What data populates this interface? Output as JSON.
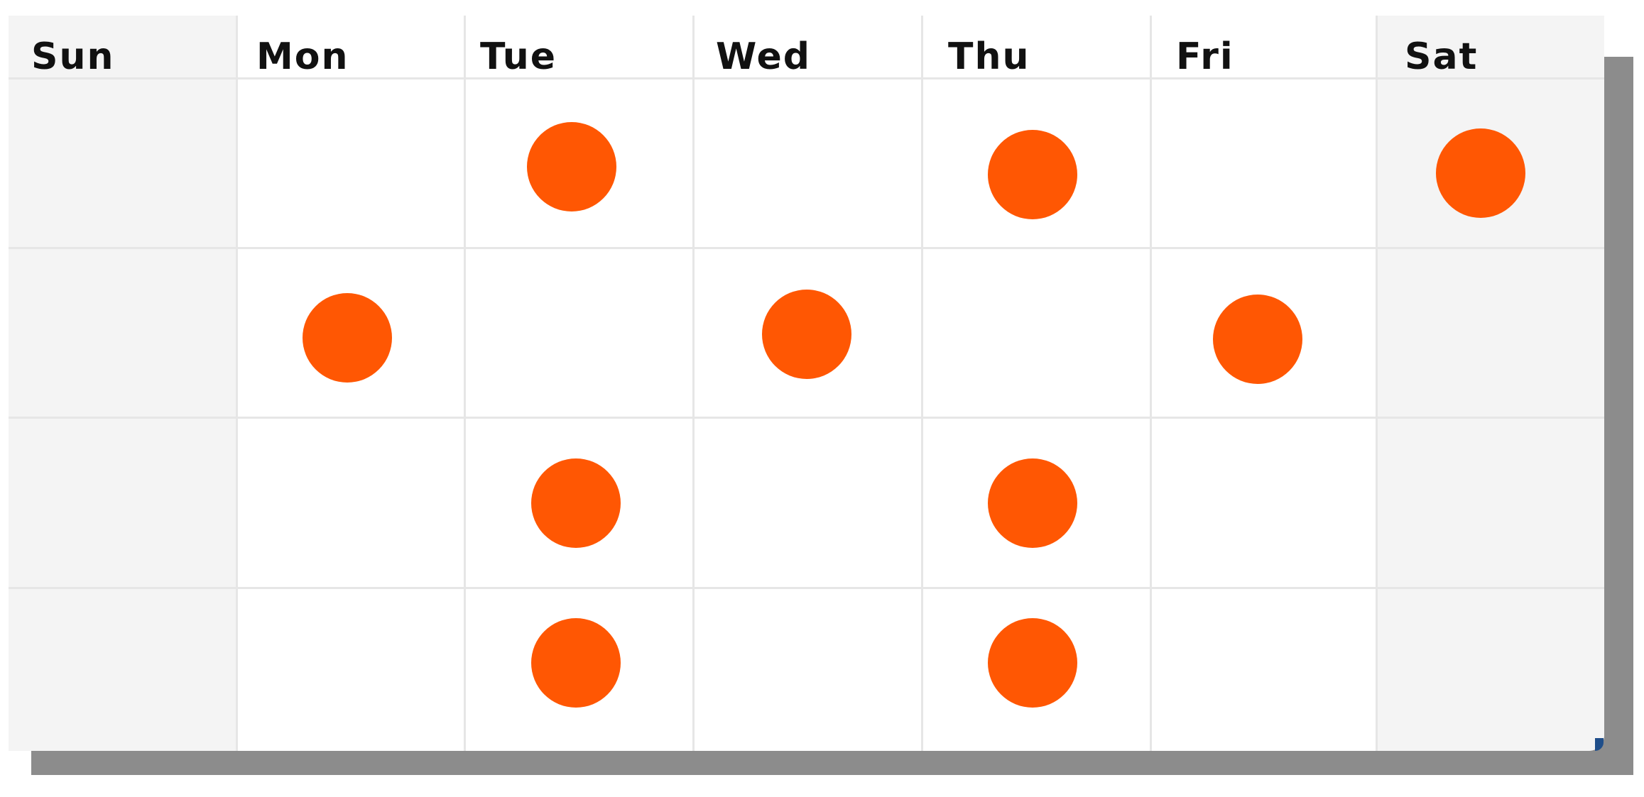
{
  "calendar": {
    "days": [
      "Sun",
      "Mon",
      "Tue",
      "Wed",
      "Thu",
      "Fri",
      "Sat"
    ],
    "weeks": 4,
    "marked_days": [
      {
        "week": 1,
        "day": "Tue"
      },
      {
        "week": 1,
        "day": "Thu"
      },
      {
        "week": 1,
        "day": "Sat"
      },
      {
        "week": 2,
        "day": "Mon"
      },
      {
        "week": 2,
        "day": "Wed"
      },
      {
        "week": 2,
        "day": "Fri"
      },
      {
        "week": 3,
        "day": "Tue"
      },
      {
        "week": 3,
        "day": "Thu"
      },
      {
        "week": 4,
        "day": "Tue"
      },
      {
        "week": 4,
        "day": "Thu"
      }
    ]
  },
  "colors": {
    "marker": "#ff5703",
    "weekend_background": "#f4f4f4",
    "grid_line": "#e6e6e6",
    "shadow": "#8c8c8c",
    "text": "#111111"
  }
}
